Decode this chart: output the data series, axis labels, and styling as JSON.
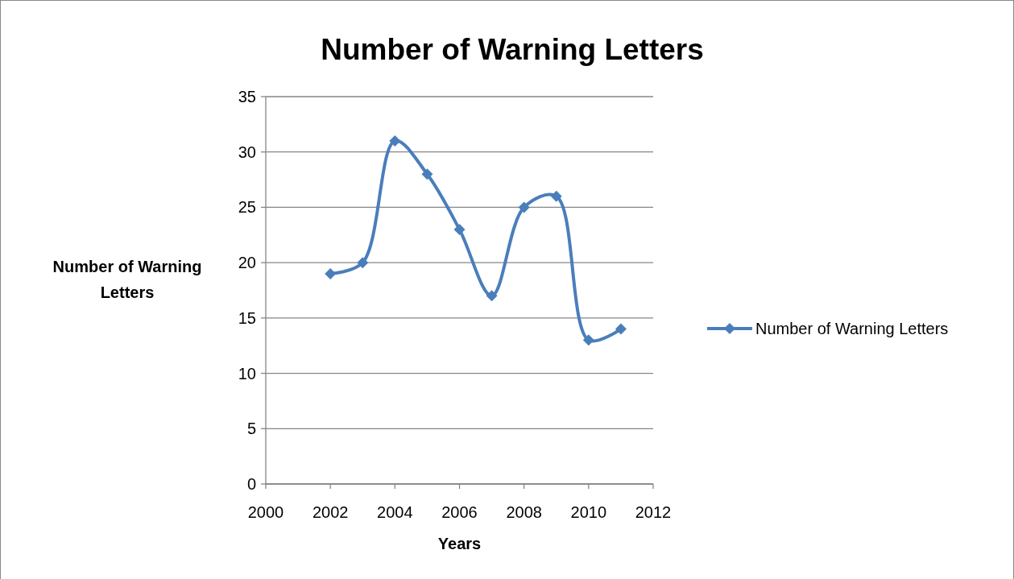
{
  "chart_data": {
    "type": "line",
    "title": "Number of Warning Letters",
    "xlabel": "Years",
    "ylabel": "Number of Warning Letters",
    "x": [
      2002,
      2003,
      2004,
      2005,
      2006,
      2007,
      2008,
      2009,
      2010,
      2011
    ],
    "series": [
      {
        "name": "Number of Warning Letters",
        "color": "#4a7ebb",
        "values": [
          19,
          20,
          31,
          28,
          23,
          17,
          25,
          26,
          13,
          14
        ]
      }
    ],
    "xlim": [
      2000,
      2012
    ],
    "xticks": [
      2000,
      2002,
      2004,
      2006,
      2008,
      2010,
      2012
    ],
    "ylim": [
      0,
      35
    ],
    "yticks": [
      0,
      5,
      10,
      15,
      20,
      25,
      30,
      35
    ],
    "grid": "y",
    "legend": "right",
    "marker": "diamond",
    "line_style": "solid"
  }
}
